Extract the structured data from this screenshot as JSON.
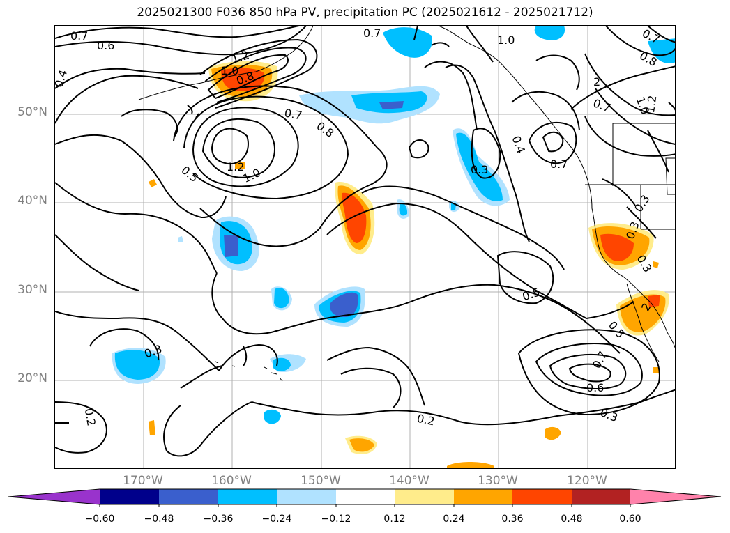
{
  "title": "2025021300 F036 850 hPa PV, precipitation PC (2025021612 - 2025021712)",
  "lat_labels": [
    "50°N",
    "40°N",
    "30°N",
    "20°N"
  ],
  "lon_labels": [
    "170°W",
    "160°W",
    "150°W",
    "140°W",
    "130°W",
    "120°W"
  ],
  "colorbar": {
    "ticks": [
      "−0.60",
      "−0.48",
      "−0.36",
      "−0.24",
      "−0.12",
      "0.12",
      "0.24",
      "0.36",
      "0.48",
      "0.60"
    ],
    "colors": [
      "#9933cc",
      "#00008b",
      "#3a5fcd",
      "#00bfff",
      "#b0e2ff",
      "#ffffff",
      "#ffec8b",
      "#ffa500",
      "#ff4500",
      "#b22222",
      "#ff82ab"
    ]
  },
  "contour_labels": [
    "0.7",
    "0.6",
    "0.4",
    "1.2",
    "1.0",
    "0.8",
    "0.7",
    "0.8",
    "0.5",
    "1.2",
    "1.0",
    "0.7",
    "1.0",
    "0.8",
    "0.7",
    "2",
    "0.7",
    "1.0",
    "1.2",
    "0.4",
    "0.3",
    "0.7",
    "0.3",
    "0.5",
    "0.3",
    "0.3",
    "0.2",
    "0.2",
    "0.5",
    "0.7",
    "0.6",
    "0.3",
    "2",
    "0.3"
  ]
}
